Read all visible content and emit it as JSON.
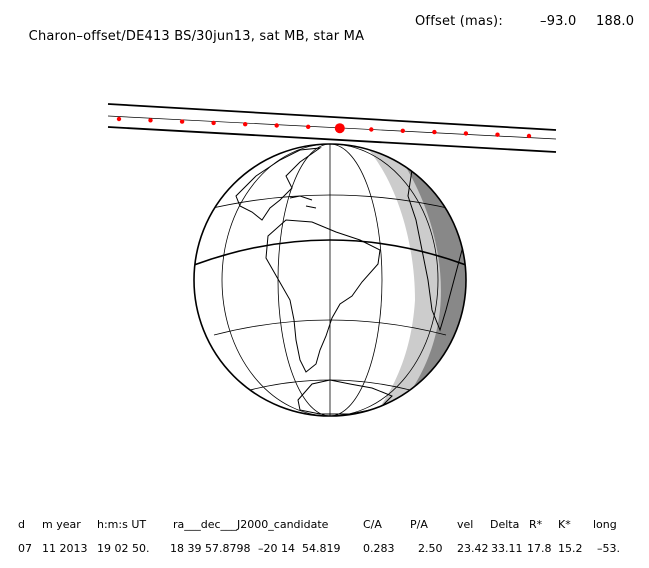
{
  "title": {
    "label": "Charon–offset/DE413 BS/30jun13, sat MB, star MA",
    "offset_label": "Offset (mas):",
    "offset_x": "–93.0",
    "offset_y": "188.0"
  },
  "table": {
    "headers": {
      "d": "d",
      "m_year": "m year",
      "hms_ut": "h:m:s UT",
      "ra_dec": "ra___dec___J2000_candidate",
      "ca": "C/A",
      "pa": "P/A",
      "vel": "vel",
      "delta": "Delta",
      "rstar": "R*",
      "kstar": "K*",
      "long": "long"
    },
    "values": {
      "d": "07",
      "m_year": "11 2013",
      "hms_ut": "19 02 50.",
      "ra": "18 39 57.8798",
      "dec": "–20 14  54.819",
      "ca": "0.283",
      "pa": "2.50",
      "vel": "23.42",
      "delta": "33.11",
      "rstar": "17.8",
      "kstar": "15.2",
      "long": "–53."
    }
  },
  "map": {
    "globe_color": "#ffffff",
    "night_color": "#888888",
    "twilight_color": "#cccccc",
    "track_dot_color": "#ff0000",
    "line_color": "#000000",
    "track_point_count": 14
  }
}
